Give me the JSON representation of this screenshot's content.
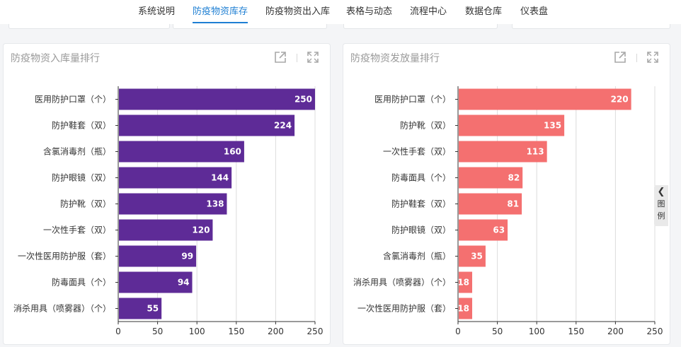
{
  "nav": {
    "tabs": [
      {
        "label": "系统说明",
        "active": false
      },
      {
        "label": "防疫物资库存",
        "active": true
      },
      {
        "label": "防疫物资出入库",
        "active": false
      },
      {
        "label": "表格与动态",
        "active": false
      },
      {
        "label": "流程中心",
        "active": false
      },
      {
        "label": "数据仓库",
        "active": false
      },
      {
        "label": "仪表盘",
        "active": false
      }
    ]
  },
  "legend_toggle": {
    "char1": "图",
    "char2": "例",
    "icon": "chevron-left-icon"
  },
  "icons": {
    "open": "open-external-icon",
    "fullscreen": "fullscreen-icon"
  },
  "chart_data": [
    {
      "type": "bar",
      "orientation": "horizontal",
      "title": "防疫物资入库量排行",
      "color": "#5e2b97",
      "categories": [
        "医用防护口罩（个）",
        "防护鞋套（双）",
        "含氯消毒剂（瓶）",
        "防护眼镜（双）",
        "防护靴（双）",
        "一次性手套（双）",
        "一次性医用防护服（套）",
        "防毒面具（个）",
        "消杀用具（喷雾器）（个）"
      ],
      "values": [
        250,
        224,
        160,
        144,
        138,
        120,
        99,
        94,
        55
      ],
      "xlim": [
        0,
        250
      ],
      "xticks": [
        0,
        50,
        100,
        150,
        200,
        250
      ],
      "grid": true
    },
    {
      "type": "bar",
      "orientation": "horizontal",
      "title": "防疫物资发放量排行",
      "color": "#f47070",
      "categories": [
        "医用防护口罩（个）",
        "防护靴（双）",
        "一次性手套（双）",
        "防毒面具（个）",
        "防护鞋套（双）",
        "防护眼镜（双）",
        "含氯消毒剂（瓶）",
        "消杀用具（喷雾器）（个）",
        "一次性医用防护服（套）"
      ],
      "values": [
        220,
        135,
        113,
        82,
        81,
        63,
        35,
        18,
        18
      ],
      "xlim": [
        0,
        250
      ],
      "xticks": [
        0,
        50,
        100,
        150,
        200,
        250
      ],
      "grid": true
    }
  ]
}
